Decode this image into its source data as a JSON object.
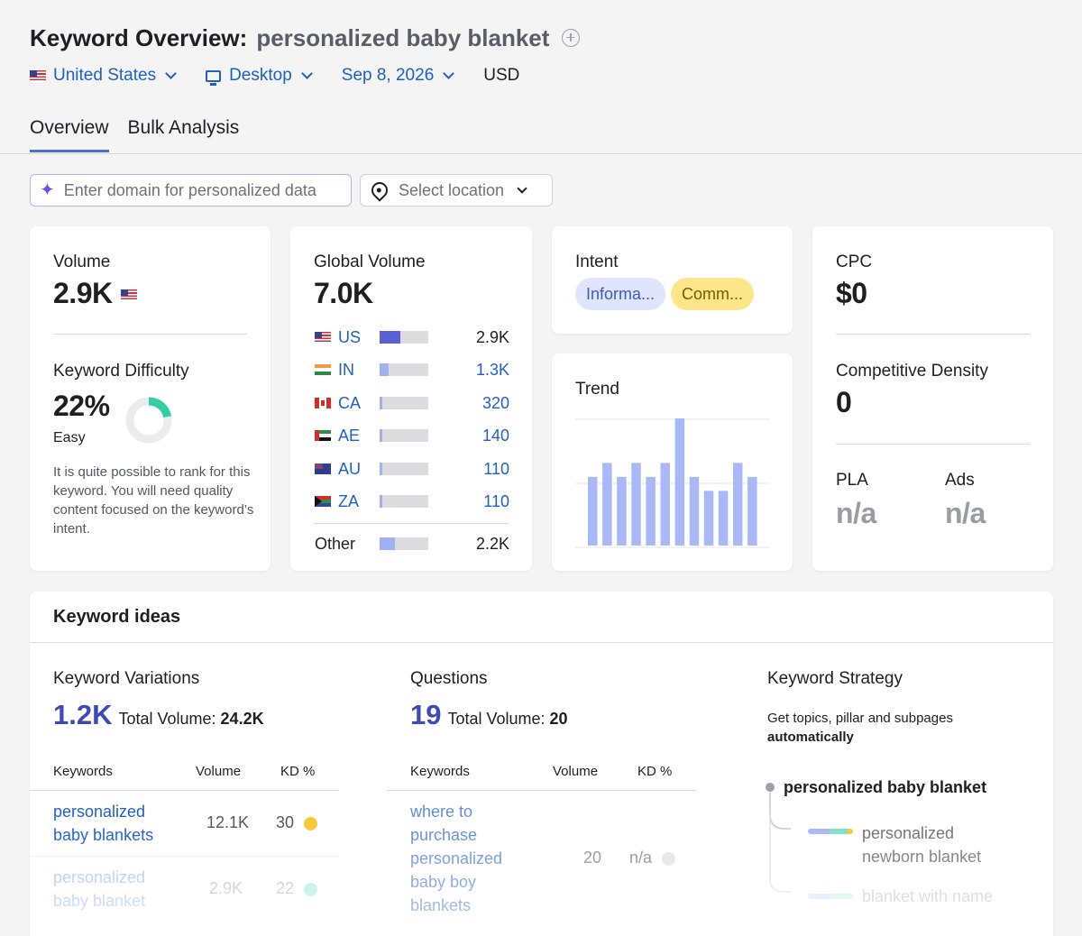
{
  "header": {
    "title": "Keyword Overview:",
    "keyword": "personalized baby blanket"
  },
  "filters": {
    "country": "United States",
    "device": "Desktop",
    "date": "Sep 8, 2026",
    "currency": "USD"
  },
  "tabs": [
    {
      "label": "Overview",
      "active": true
    },
    {
      "label": "Bulk Analysis",
      "active": false
    }
  ],
  "personalize": {
    "domain_placeholder": "Enter domain for personalized data",
    "location_placeholder": "Select location"
  },
  "volume": {
    "label": "Volume",
    "value": "2.9K"
  },
  "keyword_difficulty": {
    "label": "Keyword Difficulty",
    "value": "22%",
    "percent": 22,
    "level": "Easy",
    "description": "It is quite possible to rank for this keyword. You will need quality content focused on the keyword’s intent.",
    "accent": "#2fd0a4"
  },
  "global_volume": {
    "label": "Global Volume",
    "value": "7.0K",
    "countries": [
      {
        "code": "US",
        "value": "2.9K",
        "share": 0.42
      },
      {
        "code": "IN",
        "value": "1.3K",
        "share": 0.19
      },
      {
        "code": "CA",
        "value": "320",
        "share": 0.05
      },
      {
        "code": "AE",
        "value": "140",
        "share": 0.03
      },
      {
        "code": "AU",
        "value": "110",
        "share": 0.02
      },
      {
        "code": "ZA",
        "value": "110",
        "share": 0.02
      }
    ],
    "other": {
      "label": "Other",
      "value": "2.2K",
      "share": 0.31
    }
  },
  "intent": {
    "label": "Intent",
    "tags": [
      {
        "text": "Informa...",
        "bg": "#dfe5fc",
        "color": "#3d5ac8"
      },
      {
        "text": "Comm...",
        "bg": "#fde68a",
        "color": "#7a5a00"
      }
    ]
  },
  "trend": {
    "label": "Trend",
    "values": [
      0.54,
      0.65,
      0.54,
      0.65,
      0.54,
      0.65,
      1.0,
      0.54,
      0.43,
      0.43,
      0.65,
      0.54
    ],
    "color": "#a9b8f7"
  },
  "cpc": {
    "label": "CPC",
    "value": "$0"
  },
  "competitive_density": {
    "label": "Competitive Density",
    "value": "0"
  },
  "pla": {
    "label": "PLA",
    "value": "n/a"
  },
  "ads": {
    "label": "Ads",
    "value": "n/a"
  },
  "keyword_ideas": {
    "title": "Keyword ideas",
    "variations": {
      "label": "Keyword Variations",
      "count": "1.2K",
      "total_label": "Total Volume:",
      "total": "24.2K",
      "columns": [
        "Keywords",
        "Volume",
        "KD %"
      ],
      "rows": [
        {
          "keyword": "personalized baby blankets",
          "volume": "12.1K",
          "kd": "30",
          "dot": "#f5c93a"
        },
        {
          "keyword": "personalized baby blanket",
          "volume": "2.9K",
          "kd": "22",
          "dot": "#2fd0a4"
        }
      ]
    },
    "questions": {
      "label": "Questions",
      "count": "19",
      "total_label": "Total Volume:",
      "total": "20",
      "columns": [
        "Keywords",
        "Volume",
        "KD %"
      ],
      "rows": [
        {
          "keyword": "where to purchase personalized baby boy blankets",
          "volume": "20",
          "kd": "n/a",
          "dot": "#d8d8dc"
        }
      ]
    },
    "strategy": {
      "label": "Keyword Strategy",
      "subtitle": "Get topics, pillar and subpages",
      "subtitle_bold": "automatically",
      "root": "personalized baby blanket",
      "children": [
        "personalized newborn blanket",
        "blanket with name"
      ]
    }
  }
}
